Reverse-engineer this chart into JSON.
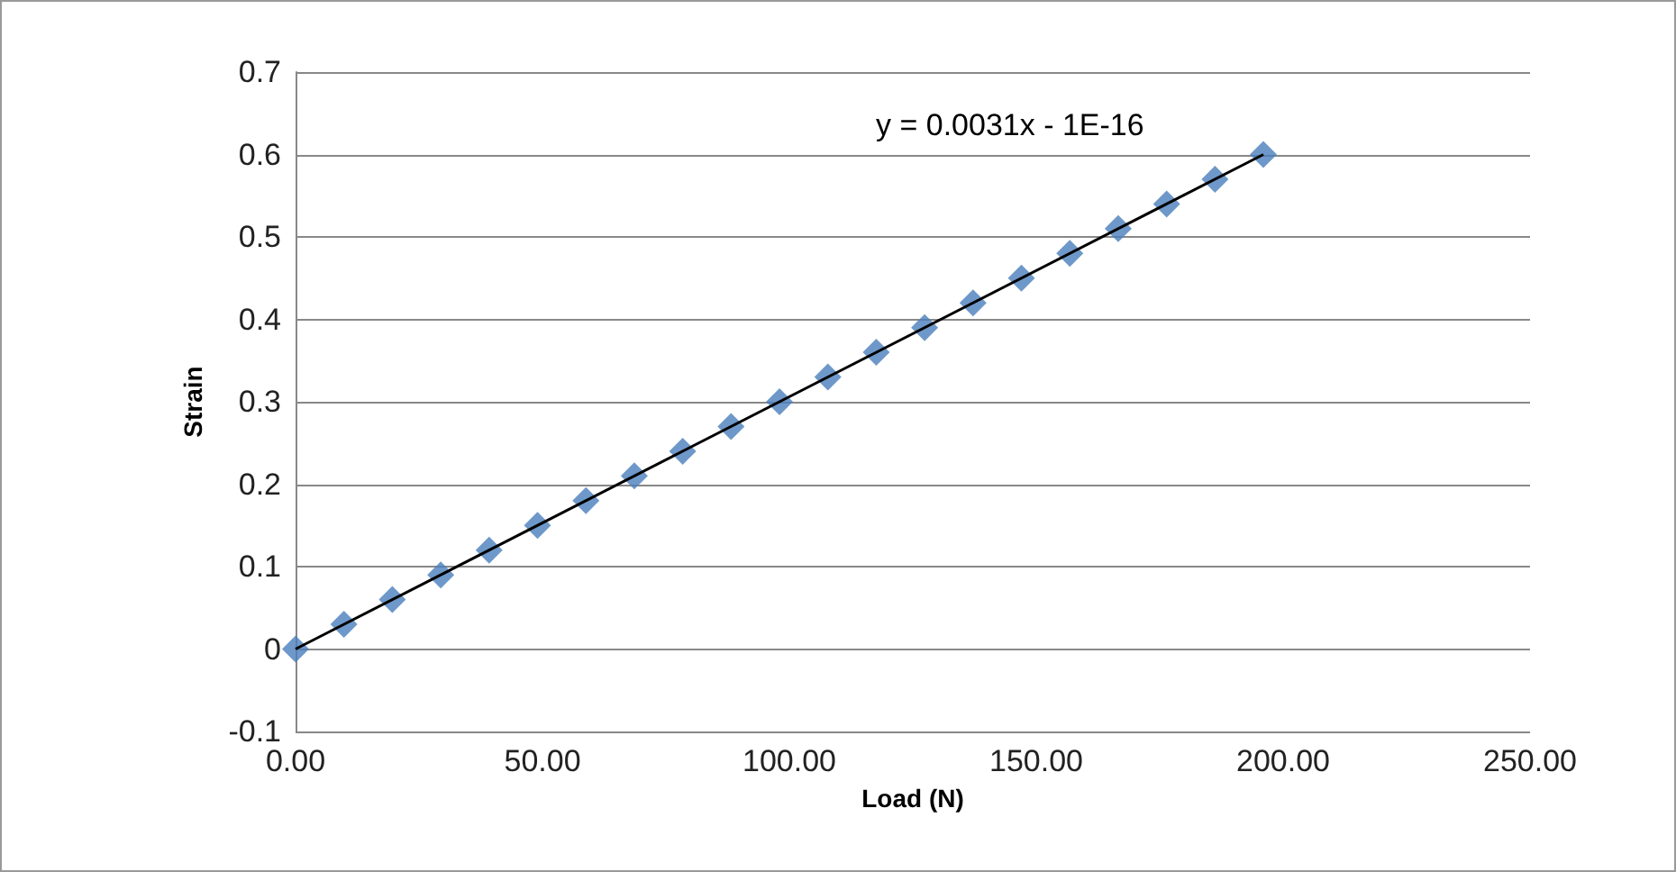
{
  "chart_data": {
    "type": "scatter",
    "xlabel": "Load (N)",
    "ylabel": "Strain",
    "x": [
      0,
      9.8,
      19.6,
      29.4,
      39.2,
      49,
      58.8,
      68.6,
      78.4,
      88.2,
      98,
      107.8,
      117.6,
      127.4,
      137.2,
      147,
      156.8,
      166.6,
      176.4,
      186.2,
      196
    ],
    "series": [
      {
        "color": "#4a7ebb",
        "marker": "diamond",
        "values": [
          0,
          0.03,
          0.06,
          0.09,
          0.12,
          0.15,
          0.18,
          0.21,
          0.24,
          0.27,
          0.3,
          0.33,
          0.36,
          0.39,
          0.42,
          0.45,
          0.48,
          0.51,
          0.54,
          0.57,
          0.6
        ]
      },
      {
        "type": "line",
        "color": "#000000",
        "marker": "none",
        "x": [
          0,
          196
        ],
        "values": [
          0,
          0.6
        ]
      }
    ],
    "annotations": [
      "y = 0.0031x - 1E-16"
    ],
    "xlim": [
      0,
      250
    ],
    "xticks": [
      {
        "value": 0,
        "label": "0.00"
      },
      {
        "value": 50,
        "label": "50.00"
      },
      {
        "value": 100,
        "label": "100.00"
      },
      {
        "value": 150,
        "label": "150.00"
      },
      {
        "value": 200,
        "label": "200.00"
      },
      {
        "value": 250,
        "label": "250.00"
      }
    ],
    "ylim": [
      -0.1,
      0.7
    ],
    "yticks": [
      -0.1,
      0,
      0.1,
      0.2,
      0.3,
      0.4,
      0.5,
      0.6,
      0.7
    ],
    "grid": "y"
  }
}
